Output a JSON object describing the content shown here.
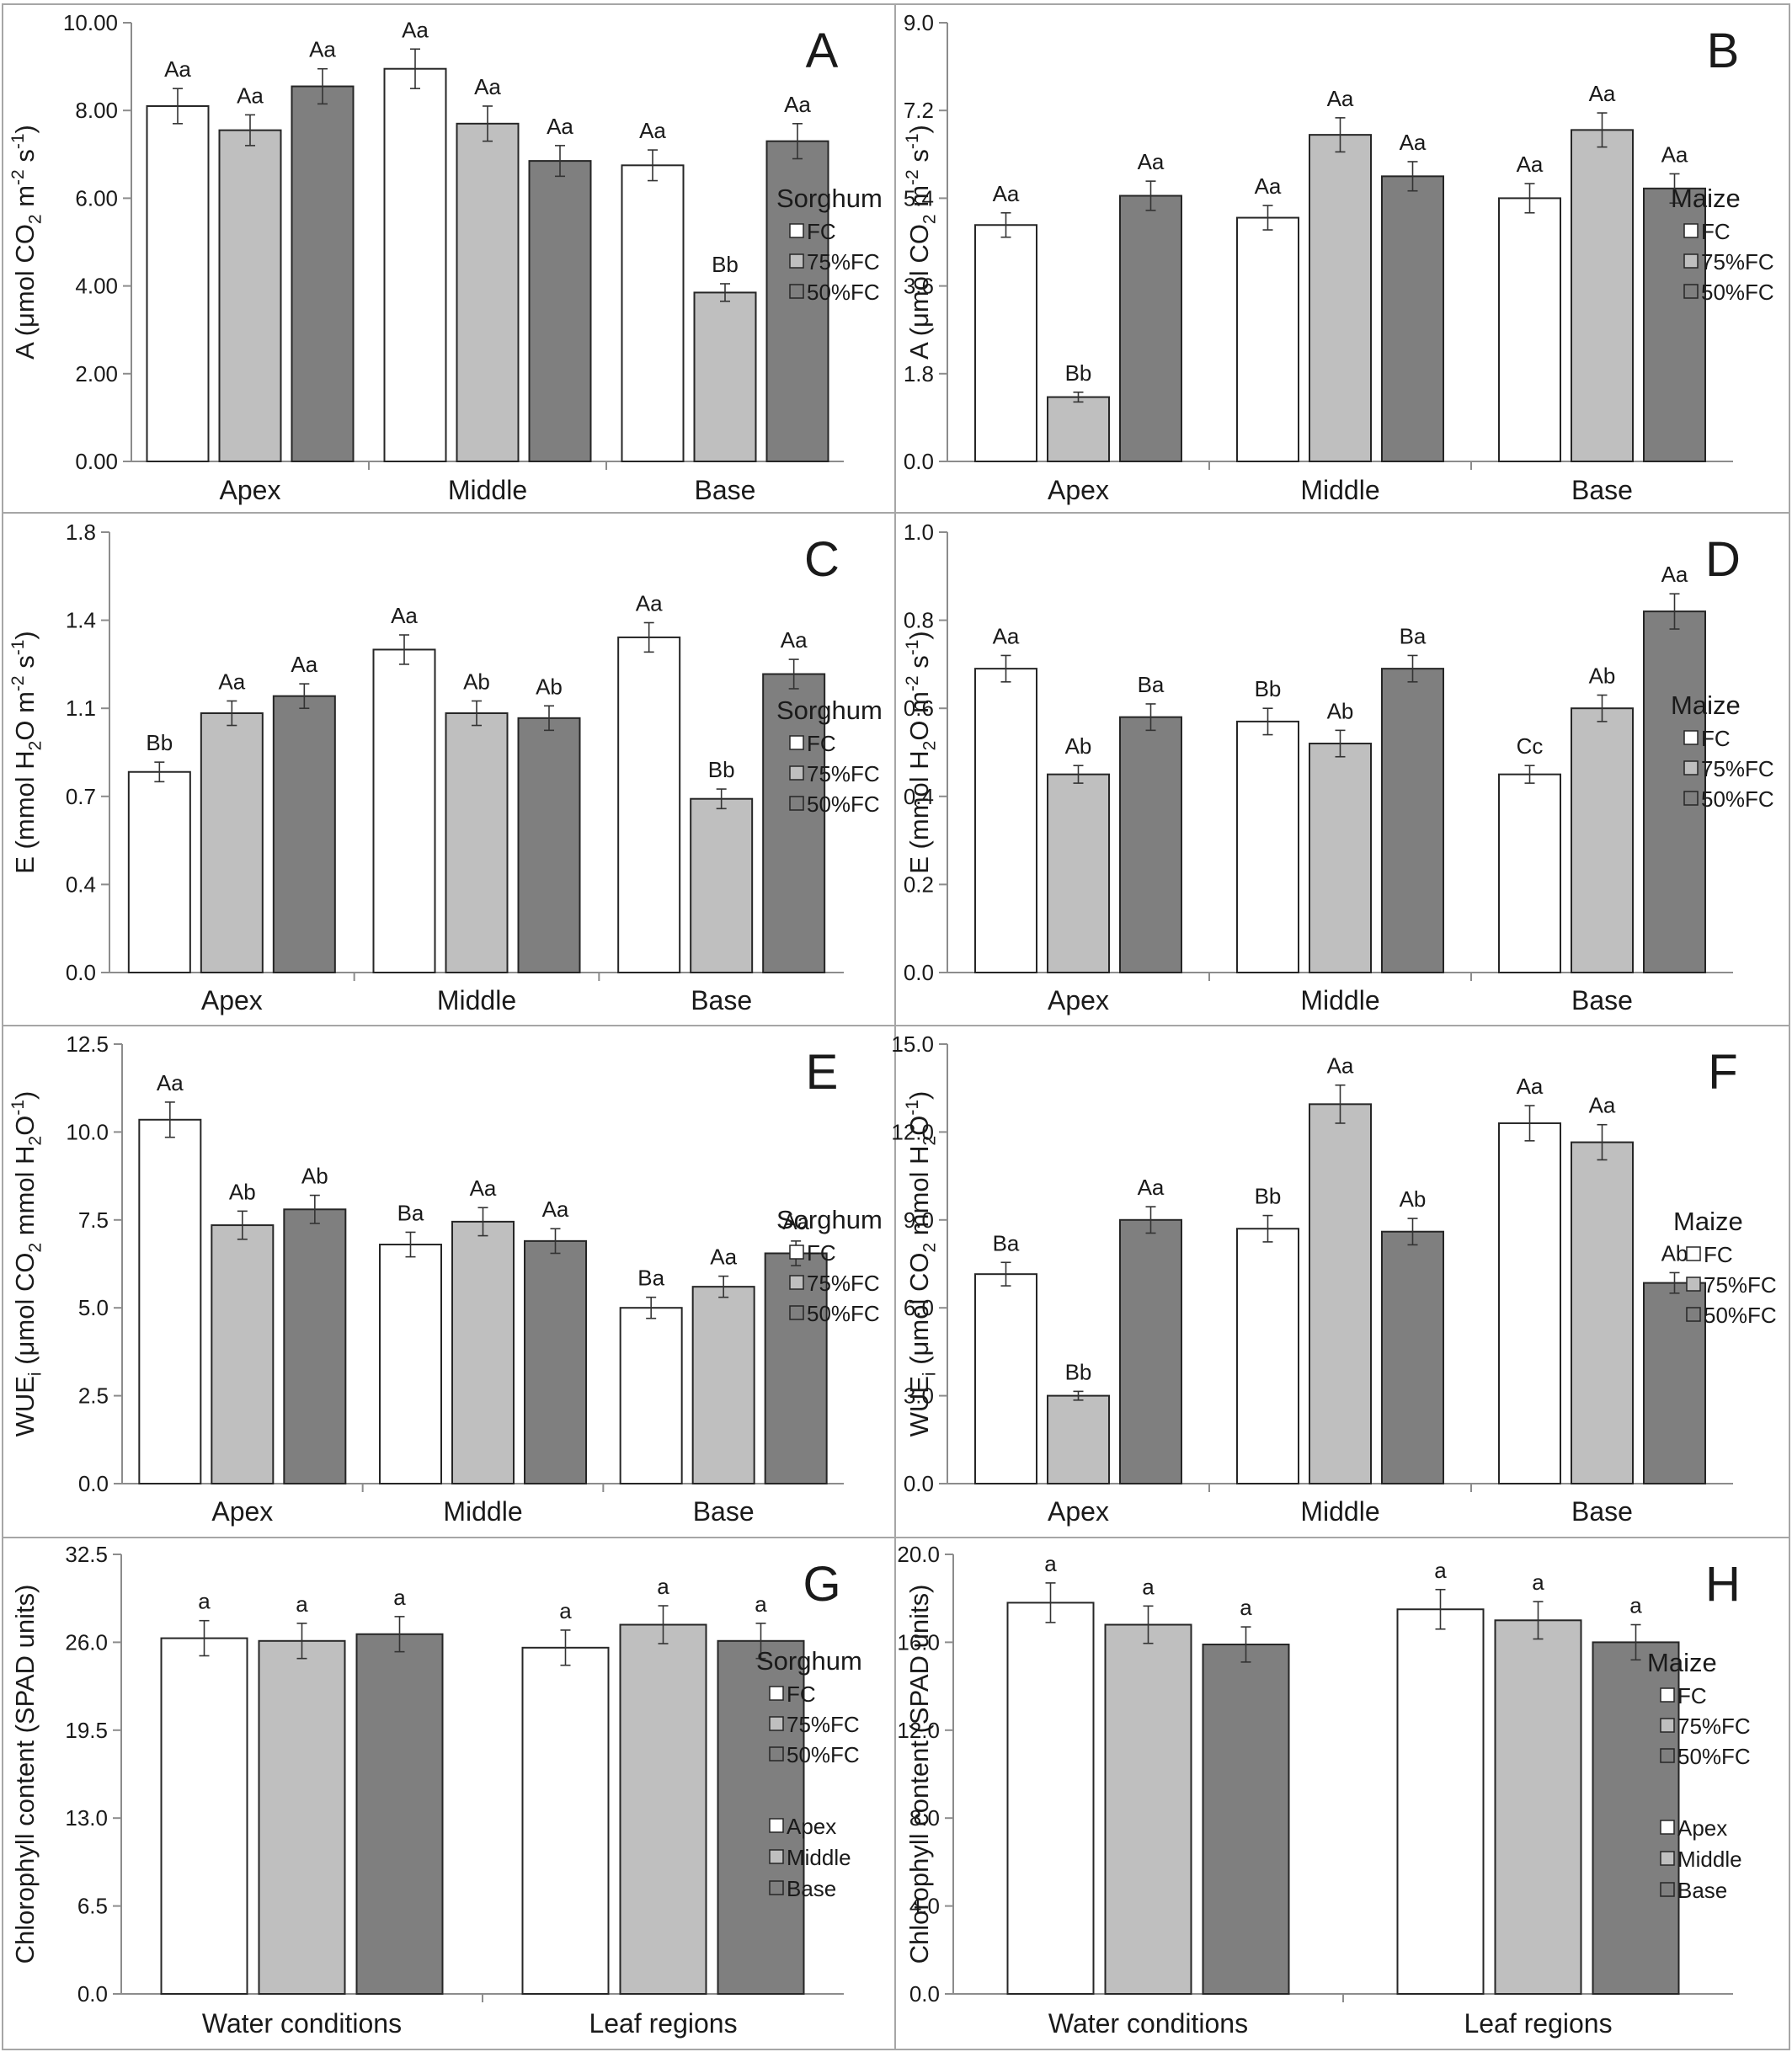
{
  "chart_data": [
    {
      "panel": "A",
      "type": "bar",
      "categories": [
        "Apex",
        "Middle",
        "Base"
      ],
      "ylabel": "A (μmol CO<sub>2</sub> m<sup>-2</sup> s<sup>-1</sup>)",
      "ylim": [
        0,
        10
      ],
      "yticks": [
        "0.00",
        "2.00",
        "4.00",
        "6.00",
        "8.00",
        "10.00"
      ],
      "legend": {
        "title": "Sorghum",
        "entries": [
          "FC",
          "75%FC",
          "50%FC"
        ]
      },
      "series": [
        {
          "name": "FC",
          "values": [
            8.1,
            8.95,
            6.75
          ],
          "errors": [
            0.4,
            0.45,
            0.35
          ],
          "labels": [
            "Aa",
            "Aa",
            "Aa"
          ]
        },
        {
          "name": "75%FC",
          "values": [
            7.55,
            7.7,
            3.85
          ],
          "errors": [
            0.35,
            0.4,
            0.2
          ],
          "labels": [
            "Aa",
            "Aa",
            "Bb"
          ]
        },
        {
          "name": "50%FC",
          "values": [
            8.55,
            6.85,
            7.3
          ],
          "errors": [
            0.4,
            0.35,
            0.4
          ],
          "labels": [
            "Aa",
            "Aa",
            "Aa"
          ]
        }
      ]
    },
    {
      "panel": "B",
      "type": "bar",
      "categories": [
        "Apex",
        "Middle",
        "Base"
      ],
      "ylabel": "A (μmol CO<sub>2</sub> m<sup>-2</sup> s<sup>-1</sup>)",
      "ylim": [
        0,
        9
      ],
      "yticks": [
        "0.0",
        "1.8",
        "3.6",
        "5.4",
        "7.2",
        "9.0"
      ],
      "legend": {
        "title": "Maize",
        "entries": [
          "FC",
          "75%FC",
          "50%FC"
        ]
      },
      "series": [
        {
          "name": "FC",
          "values": [
            4.85,
            5.0,
            5.4
          ],
          "errors": [
            0.25,
            0.25,
            0.3
          ],
          "labels": [
            "Aa",
            "Aa",
            "Aa"
          ]
        },
        {
          "name": "75%FC",
          "values": [
            1.32,
            6.7,
            6.8
          ],
          "errors": [
            0.1,
            0.35,
            0.35
          ],
          "labels": [
            "Bb",
            "Aa",
            "Aa"
          ]
        },
        {
          "name": "50%FC",
          "values": [
            5.45,
            5.85,
            5.6
          ],
          "errors": [
            0.3,
            0.3,
            0.3
          ],
          "labels": [
            "Aa",
            "Aa",
            "Aa"
          ]
        }
      ]
    },
    {
      "panel": "C",
      "type": "bar",
      "categories": [
        "Apex",
        "Middle",
        "Base"
      ],
      "ylabel": "E (mmol H<sub>2</sub>O m<sup>-2</sup> s<sup>-1</sup>)",
      "ylim": [
        0,
        1.8
      ],
      "yticks": [
        "0.0",
        "0.4",
        "0.7",
        "1.1",
        "1.4",
        "1.8"
      ],
      "legend": {
        "title": "Sorghum",
        "entries": [
          "FC",
          "75%FC",
          "50%FC"
        ]
      },
      "series": [
        {
          "name": "FC",
          "values": [
            0.82,
            1.32,
            1.37
          ],
          "errors": [
            0.04,
            0.06,
            0.06
          ],
          "labels": [
            "Bb",
            "Aa",
            "Aa"
          ]
        },
        {
          "name": "75%FC",
          "values": [
            1.06,
            1.06,
            0.71
          ],
          "errors": [
            0.05,
            0.05,
            0.04
          ],
          "labels": [
            "Aa",
            "Ab",
            "Bb"
          ]
        },
        {
          "name": "50%FC",
          "values": [
            1.13,
            1.04,
            1.22
          ],
          "errors": [
            0.05,
            0.05,
            0.06
          ],
          "labels": [
            "Aa",
            "Ab",
            "Aa"
          ]
        }
      ]
    },
    {
      "panel": "D",
      "type": "bar",
      "categories": [
        "Apex",
        "Middle",
        "Base"
      ],
      "ylabel": "E (mmol H<sub>2</sub>O m<sup>-2</sup> s<sup>-1</sup>)",
      "ylim": [
        0,
        1.0
      ],
      "yticks": [
        "0.0",
        "0.2",
        "0.4",
        "0.6",
        "0.8",
        "1.0"
      ],
      "legend": {
        "title": "Maize",
        "entries": [
          "FC",
          "75%FC",
          "50%FC"
        ]
      },
      "series": [
        {
          "name": "FC",
          "values": [
            0.69,
            0.57,
            0.45
          ],
          "errors": [
            0.03,
            0.03,
            0.02
          ],
          "labels": [
            "Aa",
            "Bb",
            "Cc"
          ]
        },
        {
          "name": "75%FC",
          "values": [
            0.45,
            0.52,
            0.6
          ],
          "errors": [
            0.02,
            0.03,
            0.03
          ],
          "labels": [
            "Ab",
            "Ab",
            "Ab"
          ]
        },
        {
          "name": "50%FC",
          "values": [
            0.58,
            0.69,
            0.82
          ],
          "errors": [
            0.03,
            0.03,
            0.04
          ],
          "labels": [
            "Ba",
            "Ba",
            "Aa"
          ]
        }
      ]
    },
    {
      "panel": "E",
      "type": "bar",
      "categories": [
        "Apex",
        "Middle",
        "Base"
      ],
      "ylabel": "WUE<sub>i</sub> (μmol CO<sub>2</sub> mmol H<sub>2</sub>O<sup>-1</sup>)",
      "ylim": [
        0,
        12.5
      ],
      "yticks": [
        "0.0",
        "2.5",
        "5.0",
        "7.5",
        "10.0",
        "12.5"
      ],
      "legend": {
        "title": "Sorghum",
        "entries": [
          "FC",
          "75%FC",
          "50%FC"
        ]
      },
      "series": [
        {
          "name": "FC",
          "values": [
            10.35,
            6.8,
            5.0
          ],
          "errors": [
            0.5,
            0.35,
            0.3
          ],
          "labels": [
            "Aa",
            "Ba",
            "Ba"
          ]
        },
        {
          "name": "75%FC",
          "values": [
            7.35,
            7.45,
            5.6
          ],
          "errors": [
            0.4,
            0.4,
            0.3
          ],
          "labels": [
            "Ab",
            "Aa",
            "Aa"
          ]
        },
        {
          "name": "50%FC",
          "values": [
            7.8,
            6.9,
            6.55
          ],
          "errors": [
            0.4,
            0.35,
            0.35
          ],
          "labels": [
            "Ab",
            "Aa",
            "Aa"
          ]
        }
      ]
    },
    {
      "panel": "F",
      "type": "bar",
      "categories": [
        "Apex",
        "Middle",
        "Base"
      ],
      "ylabel": "WUE<sub>i</sub> (μmol CO<sub>2</sub> mmol H<sub>2</sub>O<sup>-1</sup>)",
      "ylim": [
        0,
        15
      ],
      "yticks": [
        "0.0",
        "3.0",
        "6.0",
        "9.0",
        "12.0",
        "15.0"
      ],
      "legend": {
        "title": "Maize",
        "entries": [
          "FC",
          "75%FC",
          "50%FC"
        ]
      },
      "series": [
        {
          "name": "FC",
          "values": [
            7.15,
            8.7,
            12.3
          ],
          "errors": [
            0.4,
            0.45,
            0.6
          ],
          "labels": [
            "Ba",
            "Bb",
            "Aa"
          ]
        },
        {
          "name": "75%FC",
          "values": [
            3.0,
            12.95,
            11.65
          ],
          "errors": [
            0.15,
            0.65,
            0.6
          ],
          "labels": [
            "Bb",
            "Aa",
            "Aa"
          ]
        },
        {
          "name": "50%FC",
          "values": [
            9.0,
            8.6,
            6.85
          ],
          "errors": [
            0.45,
            0.45,
            0.35
          ],
          "labels": [
            "Aa",
            "Ab",
            "Ab"
          ]
        }
      ]
    },
    {
      "panel": "G",
      "type": "bar",
      "categories": [
        "Water conditions",
        "Leaf regions"
      ],
      "ylabel": "Chlorophyll content (SPAD units)",
      "ylim": [
        0,
        32.5
      ],
      "yticks": [
        "0.0",
        "6.5",
        "13.0",
        "19.5",
        "26.0",
        "32.5"
      ],
      "legend": {
        "title": "Sorghum",
        "entries": [
          "FC",
          "75%FC",
          "50%FC"
        ],
        "entries2": [
          "Apex",
          "Middle",
          "Base"
        ]
      },
      "series": [
        {
          "name": "FC / Apex",
          "values": [
            26.3,
            25.6
          ],
          "errors": [
            1.3,
            1.3
          ],
          "labels": [
            "a",
            "a"
          ]
        },
        {
          "name": "75%FC / Middle",
          "values": [
            26.1,
            27.3
          ],
          "errors": [
            1.3,
            1.4
          ],
          "labels": [
            "a",
            "a"
          ]
        },
        {
          "name": "50%FC / Base",
          "values": [
            26.6,
            26.1
          ],
          "errors": [
            1.3,
            1.3
          ],
          "labels": [
            "a",
            "a"
          ]
        }
      ]
    },
    {
      "panel": "H",
      "type": "bar",
      "categories": [
        "Water conditions",
        "Leaf regions"
      ],
      "ylabel": "Chlorophyll content (SPAD units)",
      "ylim": [
        0,
        20
      ],
      "yticks": [
        "0.0",
        "4.0",
        "8.0",
        "12.0",
        "16.0",
        "20.0"
      ],
      "legend": {
        "title": "Maize",
        "entries": [
          "FC",
          "75%FC",
          "50%FC"
        ],
        "entries2": [
          "Apex",
          "Middle",
          "Base"
        ]
      },
      "series": [
        {
          "name": "FC / Apex",
          "values": [
            17.8,
            17.5
          ],
          "errors": [
            0.9,
            0.9
          ],
          "labels": [
            "a",
            "a"
          ]
        },
        {
          "name": "75%FC / Middle",
          "values": [
            16.8,
            17.0
          ],
          "errors": [
            0.85,
            0.85
          ],
          "labels": [
            "a",
            "a"
          ]
        },
        {
          "name": "50%FC / Base",
          "values": [
            15.9,
            16.0
          ],
          "errors": [
            0.8,
            0.8
          ],
          "labels": [
            "a",
            "a"
          ]
        }
      ]
    }
  ],
  "colors": {
    "fc": "#ffffff",
    "fc75": "#bfbfbf",
    "fc50": "#7f7f7f",
    "axis": "#8c8c8c",
    "border": "#a6a6a6",
    "text": "#1a1a1a",
    "bar_edge": "#262626"
  }
}
